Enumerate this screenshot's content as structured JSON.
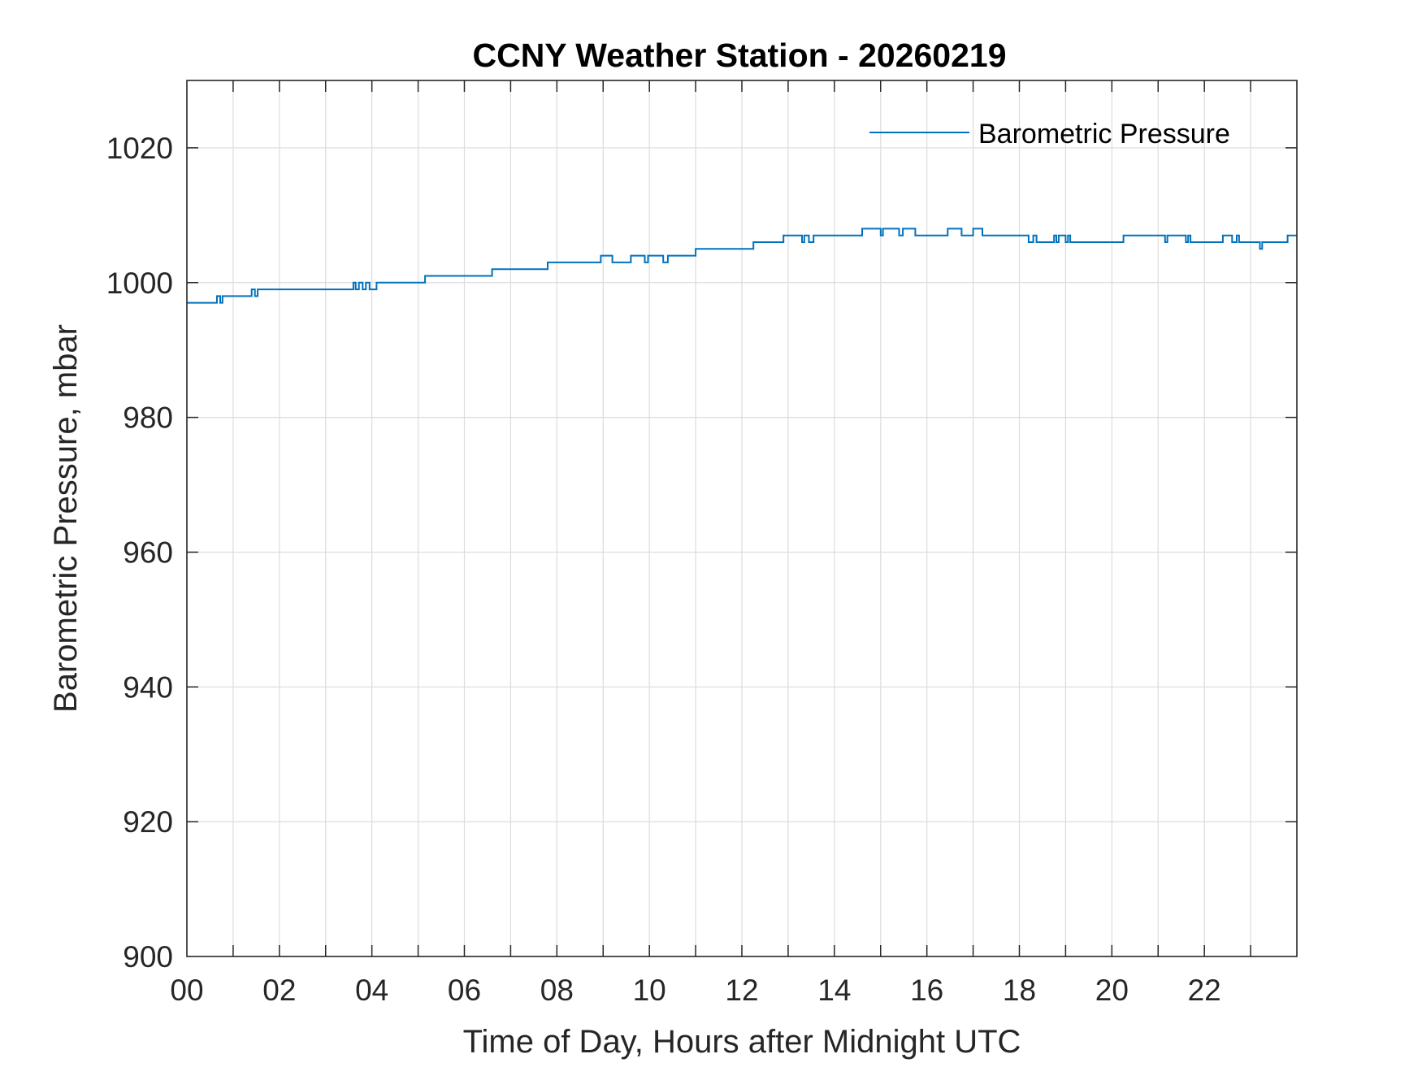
{
  "chart_data": {
    "type": "line",
    "title": "CCNY Weather Station - 20260219",
    "xlabel": "Time of Day, Hours after Midnight UTC",
    "ylabel": "Barometric Pressure, mbar",
    "xlim": [
      0,
      24
    ],
    "ylim": [
      900,
      1030
    ],
    "xticks": [
      0,
      2,
      4,
      6,
      8,
      10,
      12,
      14,
      16,
      18,
      20,
      22
    ],
    "xtick_labels": [
      "00",
      "02",
      "04",
      "06",
      "08",
      "10",
      "12",
      "14",
      "16",
      "18",
      "20",
      "22"
    ],
    "yticks": [
      900,
      920,
      940,
      960,
      980,
      1000,
      1020
    ],
    "ytick_labels": [
      "900",
      "920",
      "940",
      "960",
      "980",
      "1000",
      "1020"
    ],
    "grid": true,
    "legend_position": "top-right",
    "series": [
      {
        "name": "Barometric Pressure",
        "color": "#0072bd",
        "step": true,
        "x": [
          0.0,
          0.65,
          0.72,
          0.77,
          0.85,
          1.4,
          1.47,
          1.53,
          1.6,
          3.6,
          3.65,
          3.72,
          3.8,
          3.87,
          3.95,
          4.1,
          4.25,
          5.15,
          6.6,
          7.8,
          8.95,
          9.2,
          9.6,
          9.9,
          9.97,
          10.3,
          10.4,
          11.0,
          12.25,
          12.9,
          13.3,
          13.35,
          13.45,
          13.55,
          14.6,
          15.0,
          15.05,
          15.4,
          15.48,
          15.55,
          15.75,
          16.45,
          16.75,
          17.0,
          17.2,
          18.2,
          18.3,
          18.37,
          18.75,
          18.8,
          18.85,
          19.0,
          19.05,
          19.1,
          19.2,
          20.25,
          21.15,
          21.2,
          21.25,
          21.6,
          21.65,
          21.7,
          22.4,
          22.6,
          22.7,
          22.75,
          23.0,
          23.2,
          23.25,
          23.8
        ],
        "y": [
          997,
          998,
          997,
          998,
          998,
          999,
          998,
          999,
          999,
          1000,
          999,
          1000,
          999,
          1000,
          999,
          1000,
          1000,
          1001,
          1002,
          1003,
          1004,
          1003,
          1004,
          1003,
          1004,
          1003,
          1004,
          1005,
          1006,
          1007,
          1006,
          1007,
          1006,
          1007,
          1008,
          1007,
          1008,
          1007,
          1008,
          1008,
          1007,
          1008,
          1007,
          1008,
          1007,
          1006,
          1007,
          1006,
          1007,
          1006,
          1007,
          1006,
          1007,
          1006,
          1006,
          1007,
          1006,
          1007,
          1007,
          1006,
          1007,
          1006,
          1007,
          1006,
          1007,
          1006,
          1006,
          1005,
          1006,
          1007
        ]
      }
    ]
  }
}
